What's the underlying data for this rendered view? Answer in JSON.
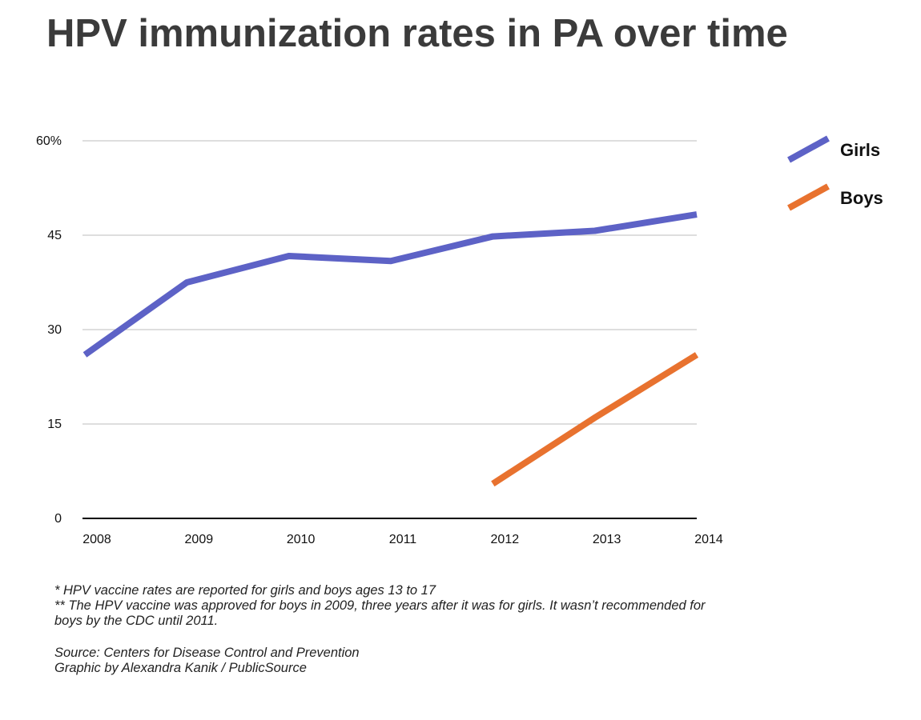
{
  "title": "HPV immunization rates in PA over time",
  "colors": {
    "girls": "#5d62c6",
    "boys": "#e8722f",
    "grid": "#bdbdbd",
    "axis": "#000000"
  },
  "chart_data": {
    "type": "line",
    "x": [
      "2008",
      "2009",
      "2010",
      "2011",
      "2012",
      "2013",
      "2014"
    ],
    "series": [
      {
        "name": "Girls",
        "values": [
          26,
          37.5,
          41.7,
          40.9,
          44.8,
          45.7,
          48.3
        ]
      },
      {
        "name": "Boys",
        "values": [
          null,
          null,
          null,
          null,
          5.5,
          16,
          26
        ]
      }
    ],
    "yticks": [
      "0",
      "15",
      "30",
      "45",
      "60%"
    ],
    "ylim": [
      0,
      60
    ],
    "grid": true,
    "legend": "right"
  },
  "notes": {
    "note1": "* HPV vaccine rates are reported for girls and boys ages 13 to 17",
    "note2a": "** The HPV vaccine was approved for boys in 2009, three years after it was for girls. It wasn’t recommended for",
    "note2b": "boys by the CDC until 2011.",
    "source": "Source: Centers for Disease Control and Prevention",
    "credit": "Graphic by Alexandra Kanik / PublicSource"
  }
}
